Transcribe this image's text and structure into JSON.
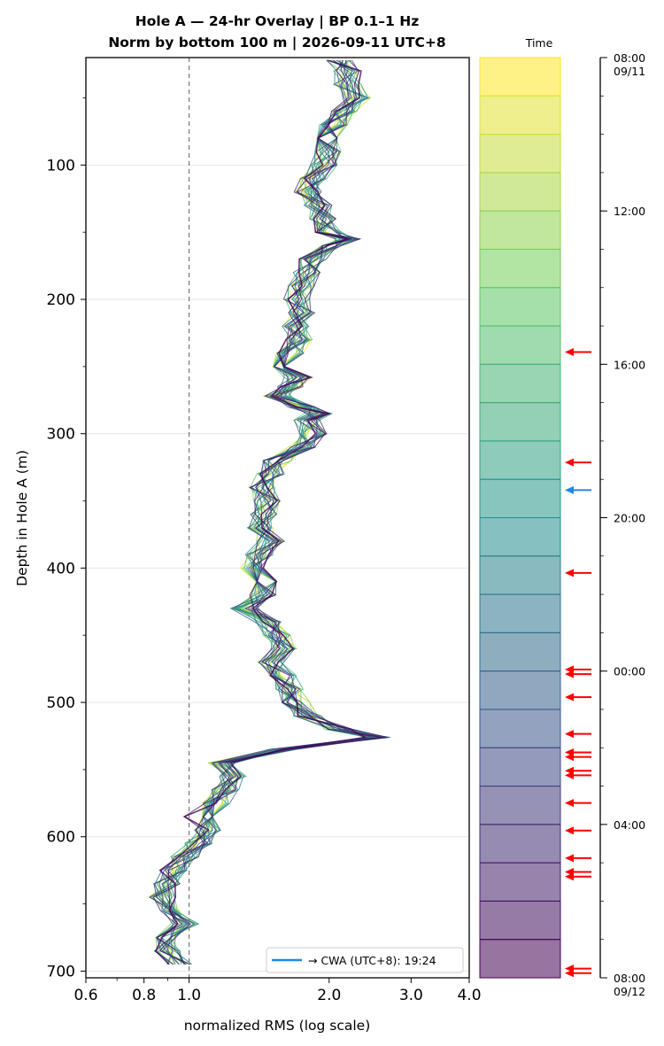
{
  "chart_data": {
    "type": "line",
    "title": "Hole A — 24-hr Overlay  |  BP 0.1–1 Hz",
    "subtitle": "Norm by bottom 100 m  |  2026-09-11 UTC+8",
    "xlabel": "normalized RMS  (log scale)",
    "ylabel": "Depth in Hole A (m)",
    "x_scale": "log",
    "xlim": [
      0.6,
      4.0
    ],
    "ylim": [
      705,
      20
    ],
    "x_ticks": [
      0.6,
      0.8,
      1.0,
      2.0,
      3.0,
      4.0
    ],
    "x_tick_labels": [
      "0.6",
      "0.8",
      "1.0",
      "2.0",
      "3.0",
      "4.0"
    ],
    "y_ticks": [
      100,
      200,
      300,
      400,
      500,
      600,
      700
    ],
    "y_tick_labels": [
      "100",
      "200",
      "300",
      "400",
      "500",
      "600",
      "700"
    ],
    "reference_line_x": 1.0,
    "grid": "y-major",
    "legend": {
      "placement": "lower-right",
      "label": "→ CWA (UTC+8): 19:24",
      "color": "#1e88e5"
    },
    "colormap": "viridis",
    "series_count": 24,
    "depth": [
      22,
      30,
      40,
      50,
      60,
      70,
      80,
      90,
      100,
      110,
      120,
      130,
      140,
      150,
      155,
      160,
      170,
      180,
      190,
      200,
      210,
      220,
      230,
      240,
      250,
      258,
      265,
      272,
      280,
      285,
      290,
      300,
      310,
      320,
      330,
      340,
      350,
      360,
      370,
      380,
      390,
      400,
      410,
      420,
      430,
      440,
      450,
      460,
      470,
      480,
      490,
      500,
      510,
      520,
      526,
      535,
      545,
      555,
      565,
      575,
      585,
      595,
      605,
      615,
      625,
      635,
      645,
      655,
      665,
      675,
      685,
      695
    ],
    "base_profile": [
      2.1,
      2.2,
      2.2,
      2.3,
      2.15,
      2.05,
      2.0,
      2.0,
      1.95,
      1.85,
      1.8,
      1.9,
      1.95,
      2.0,
      2.2,
      2.0,
      1.85,
      1.8,
      1.75,
      1.7,
      1.75,
      1.7,
      1.72,
      1.65,
      1.6,
      1.72,
      1.65,
      1.55,
      1.75,
      1.9,
      1.8,
      1.85,
      1.75,
      1.55,
      1.5,
      1.45,
      1.48,
      1.45,
      1.42,
      1.5,
      1.42,
      1.38,
      1.48,
      1.45,
      1.32,
      1.48,
      1.55,
      1.6,
      1.5,
      1.6,
      1.65,
      1.7,
      1.8,
      2.1,
      2.55,
      1.6,
      1.18,
      1.25,
      1.2,
      1.15,
      1.05,
      1.1,
      1.05,
      0.98,
      0.93,
      0.9,
      0.88,
      0.92,
      0.98,
      0.88,
      0.9,
      0.95
    ],
    "time_colorbar": {
      "label": "Time",
      "bands": 24,
      "tick_labels": [
        "08:00\n09/11",
        "12:00",
        "16:00",
        "20:00",
        "00:00",
        "04:00",
        "08:00\n09/12"
      ],
      "tick_fractions": [
        0.0,
        0.1667,
        0.3333,
        0.5,
        0.6667,
        0.8333,
        1.0
      ],
      "event_fractions": [
        0.32,
        0.44,
        0.56,
        0.665,
        0.67,
        0.695,
        0.735,
        0.755,
        0.76,
        0.775,
        0.78,
        0.81,
        0.84,
        0.87,
        0.885,
        0.89,
        0.99,
        0.995
      ],
      "highlight_fraction": 0.47,
      "event_color": "#ff0000",
      "highlight_color": "#1e88e5"
    }
  }
}
